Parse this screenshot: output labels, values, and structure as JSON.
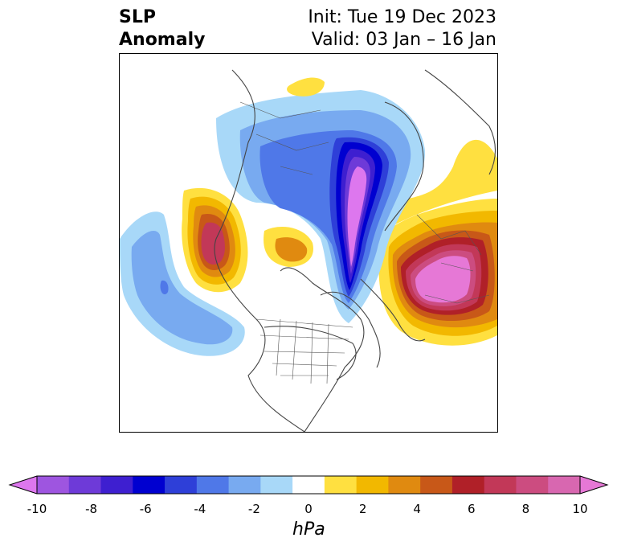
{
  "header": {
    "title_line1": "SLP",
    "title_line2": "Anomaly",
    "init_text": "Init: Tue 19 Dec 2023",
    "valid_text": "Valid: 03 Jan – 16 Jan"
  },
  "colorbar": {
    "unit": "hPa",
    "tick_labels": [
      "-10",
      "-8",
      "-6",
      "-4",
      "-2",
      "0",
      "2",
      "4",
      "6",
      "8",
      "10"
    ],
    "colors": [
      "#dd77ee",
      "#9e55e0",
      "#6e3ad8",
      "#3e1fd0",
      "#0000d0",
      "#2e3fd8",
      "#4f78e8",
      "#78aaf0",
      "#a8d8f8",
      "#ffffff",
      "#ffe040",
      "#f2b800",
      "#e08a10",
      "#c85818",
      "#b02028",
      "#c23858",
      "#cc4c80",
      "#d867b0",
      "#e678d6"
    ]
  },
  "map": {
    "anomaly_features": [
      {
        "name": "negative-anomaly-greenland",
        "min_value": -10
      },
      {
        "name": "positive-anomaly-europe",
        "max_value": 10
      },
      {
        "name": "positive-anomaly-pacific-northwest",
        "max_value": 8
      },
      {
        "name": "negative-anomaly-north-pacific",
        "min_value": -5
      }
    ]
  }
}
